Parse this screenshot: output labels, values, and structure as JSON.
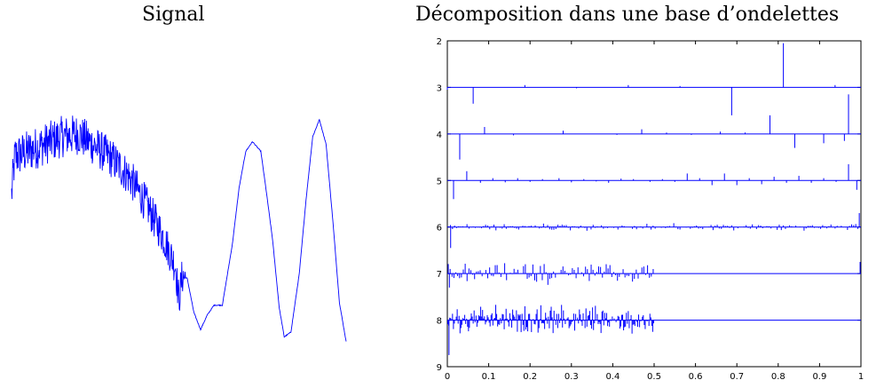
{
  "chart_data": [
    {
      "type": "line",
      "title": "Signal",
      "xlabel": "",
      "ylabel": "",
      "axes_visible": false,
      "series": [
        {
          "color": "#0000ff",
          "description_points": [
            [
              0.0,
              0.6
            ],
            [
              0.01,
              0.76
            ],
            [
              0.05,
              0.78
            ],
            [
              0.1,
              0.81
            ],
            [
              0.15,
              0.84
            ],
            [
              0.2,
              0.85
            ],
            [
              0.25,
              0.8
            ],
            [
              0.3,
              0.75
            ],
            [
              0.35,
              0.68
            ],
            [
              0.4,
              0.57
            ],
            [
              0.45,
              0.44
            ],
            [
              0.49,
              0.31
            ],
            [
              0.5,
              0.17
            ],
            [
              0.51,
              0.27
            ],
            [
              0.525,
              0.26
            ],
            [
              0.545,
              0.12
            ],
            [
              0.565,
              0.05
            ],
            [
              0.585,
              0.11
            ],
            [
              0.605,
              0.15
            ],
            [
              0.63,
              0.15
            ],
            [
              0.66,
              0.4
            ],
            [
              0.68,
              0.63
            ],
            [
              0.7,
              0.78
            ],
            [
              0.72,
              0.82
            ],
            [
              0.745,
              0.78
            ],
            [
              0.76,
              0.63
            ],
            [
              0.78,
              0.42
            ],
            [
              0.8,
              0.14
            ],
            [
              0.815,
              0.02
            ],
            [
              0.835,
              0.04
            ],
            [
              0.86,
              0.28
            ],
            [
              0.88,
              0.58
            ],
            [
              0.9,
              0.84
            ],
            [
              0.92,
              0.91
            ],
            [
              0.94,
              0.81
            ],
            [
              0.96,
              0.5
            ],
            [
              0.98,
              0.16
            ],
            [
              1.0,
              0.0
            ]
          ],
          "noise_until_x": 0.52
        }
      ]
    },
    {
      "type": "bar",
      "title": "Décomposition dans une base d’ondelettes",
      "xlabel": "",
      "ylabel": "",
      "xlim": [
        0,
        1
      ],
      "ylim": [
        2,
        9
      ],
      "y_inverted": true,
      "xticks": [
        "0",
        "0.1",
        "0.2",
        "0.3",
        "0.4",
        "0.5",
        "0.6",
        "0.7",
        "0.8",
        "0.9",
        "1"
      ],
      "yticks": [
        "2",
        "3",
        "4",
        "5",
        "6",
        "7",
        "8",
        "9"
      ],
      "grid": false,
      "color": "#0000ff",
      "levels": [
        {
          "level": 3,
          "baseline": 3,
          "coeffs": [
            [
              0.0,
              0.05
            ],
            [
              0.1875,
              -0.05
            ],
            [
              0.3125,
              0.02
            ],
            [
              0.4375,
              -0.05
            ],
            [
              0.5625,
              -0.03
            ],
            [
              0.6875,
              0.02
            ],
            [
              0.8125,
              -0.95
            ],
            [
              0.9375,
              -0.05
            ],
            [
              0.0625,
              0.35
            ],
            [
              0.6875,
              0.6
            ]
          ]
        },
        {
          "level": 4,
          "baseline": 4,
          "coeffs": [
            [
              0.03,
              0.55
            ],
            [
              0.09,
              -0.15
            ],
            [
              0.16,
              0.03
            ],
            [
              0.28,
              -0.07
            ],
            [
              0.41,
              0.02
            ],
            [
              0.47,
              -0.1
            ],
            [
              0.53,
              -0.03
            ],
            [
              0.59,
              0.02
            ],
            [
              0.66,
              -0.05
            ],
            [
              0.72,
              -0.03
            ],
            [
              0.78,
              -0.4
            ],
            [
              0.84,
              0.3
            ],
            [
              0.91,
              0.2
            ],
            [
              0.97,
              -0.85
            ],
            [
              0.96,
              0.15
            ]
          ]
        },
        {
          "level": 5,
          "baseline": 5,
          "coeffs": [
            [
              0.015,
              0.4
            ],
            [
              0.047,
              -0.2
            ],
            [
              0.08,
              0.05
            ],
            [
              0.11,
              -0.05
            ],
            [
              0.14,
              0.04
            ],
            [
              0.17,
              -0.05
            ],
            [
              0.2,
              0.03
            ],
            [
              0.23,
              -0.03
            ],
            [
              0.27,
              -0.05
            ],
            [
              0.3,
              0.04
            ],
            [
              0.33,
              -0.03
            ],
            [
              0.36,
              0.02
            ],
            [
              0.39,
              0.05
            ],
            [
              0.42,
              -0.04
            ],
            [
              0.45,
              -0.03
            ],
            [
              0.49,
              0.03
            ],
            [
              0.52,
              -0.03
            ],
            [
              0.55,
              0.03
            ],
            [
              0.58,
              -0.15
            ],
            [
              0.61,
              -0.05
            ],
            [
              0.64,
              0.1
            ],
            [
              0.67,
              -0.15
            ],
            [
              0.7,
              0.1
            ],
            [
              0.73,
              -0.05
            ],
            [
              0.76,
              0.08
            ],
            [
              0.79,
              -0.08
            ],
            [
              0.82,
              0.05
            ],
            [
              0.85,
              -0.1
            ],
            [
              0.88,
              0.05
            ],
            [
              0.91,
              -0.05
            ],
            [
              0.94,
              0.03
            ],
            [
              0.97,
              -0.35
            ],
            [
              0.99,
              0.2
            ]
          ]
        },
        {
          "level": 6,
          "baseline": 6,
          "coeffs": "dense-small",
          "max_amp": 0.25,
          "edge_spikes": [
            [
              0.008,
              0.45
            ],
            [
              0.996,
              -0.3
            ]
          ]
        },
        {
          "level": 7,
          "baseline": 7,
          "coeffs": "dense-medium",
          "until_x": 0.5,
          "max_amp": 0.25,
          "edge_spikes": [
            [
              0.005,
              0.3
            ],
            [
              0.998,
              -0.25
            ]
          ]
        },
        {
          "level": 8,
          "baseline": 8,
          "coeffs": "dense-large",
          "until_x": 0.5,
          "max_amp": 0.35,
          "edge_spikes": [
            [
              0.004,
              0.75
            ]
          ]
        }
      ]
    }
  ]
}
